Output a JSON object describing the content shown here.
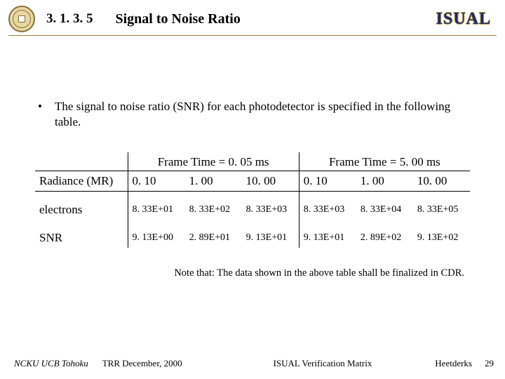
{
  "header": {
    "section_number": "3. 1. 3. 5",
    "title": "Signal to Noise Ratio",
    "logo_text": "ISUAL"
  },
  "bullet_text": "The signal to noise ratio (SNR) for each photodetector is specified in the following table.",
  "table": {
    "group_headers": [
      "Frame Time = 0. 05 ms",
      "Frame Time = 5. 00 ms"
    ],
    "row_header_label": "Radiance (MR)",
    "col_values": [
      "0. 10",
      "1. 00",
      "10. 00",
      "0. 10",
      "1. 00",
      "10. 00"
    ],
    "rows": [
      {
        "label": "electrons",
        "cells": [
          "8. 33E+01",
          "8. 33E+02",
          "8. 33E+03",
          "8. 33E+03",
          "8. 33E+04",
          "8. 33E+05"
        ]
      },
      {
        "label": "SNR",
        "cells": [
          "9. 13E+00",
          "2. 89E+01",
          "9. 13E+01",
          "9. 13E+01",
          "2. 89E+02",
          "9. 13E+02"
        ]
      }
    ]
  },
  "note": "Note that: The data shown in the above table shall be finalized in CDR.",
  "footer": {
    "affiliations": "NCKU    UCB    Tohoku",
    "event": "TRR   December, 2000",
    "doc": "ISUAL Verification Matrix",
    "author": "Heetderks",
    "page": "29"
  }
}
